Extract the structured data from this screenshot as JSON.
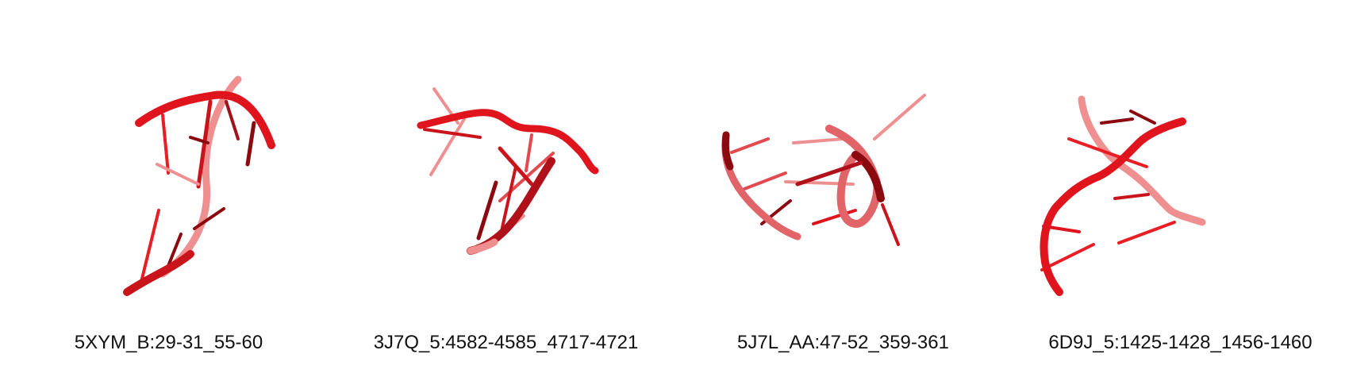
{
  "panels": [
    {
      "label": "5XYM_B:29-31_55-60"
    },
    {
      "label": "3J7Q_5:4582-4585_4717-4721"
    },
    {
      "label": "5J7L_AA:47-52_359-361"
    },
    {
      "label": "6D9J_5:1425-1428_1456-1460"
    }
  ],
  "colors": {
    "backbone": "#e0141c",
    "backbone_dark": "#8a0a10",
    "backbone_light": "#ef8f90",
    "base": "#e81e24"
  }
}
